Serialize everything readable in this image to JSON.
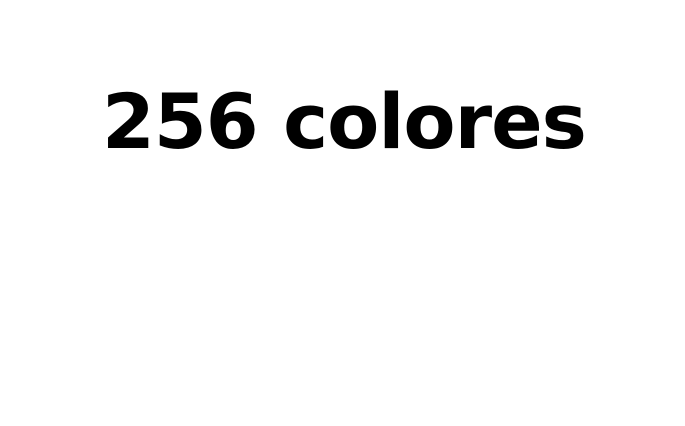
{
  "text": {
    "headline": "256 colores"
  },
  "colors": {
    "background": "#ffffff",
    "text": "#000000"
  }
}
